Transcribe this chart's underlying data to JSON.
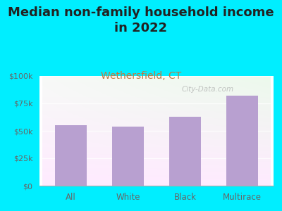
{
  "title": "Median non-family household income\nin 2022",
  "subtitle": "Wethersfield, CT",
  "subtitle_color": "#c07840",
  "categories": [
    "All",
    "White",
    "Black",
    "Multirace"
  ],
  "values": [
    55000,
    54000,
    63000,
    82000
  ],
  "bar_color": "#b8a0d0",
  "bg_color": "#00eeff",
  "plot_bg_color_topleft": "#d8eed8",
  "plot_bg_color_topright": "#f0f8f0",
  "plot_bg_color_bottom": "#f8fff8",
  "ylim": [
    0,
    100000
  ],
  "yticks": [
    0,
    25000,
    50000,
    75000,
    100000
  ],
  "ytick_labels": [
    "$0",
    "$25k",
    "$50k",
    "$75k",
    "$100k"
  ],
  "title_fontsize": 13,
  "subtitle_fontsize": 10,
  "watermark": "City-Data.com",
  "title_color": "#222222",
  "tick_color": "#666666"
}
